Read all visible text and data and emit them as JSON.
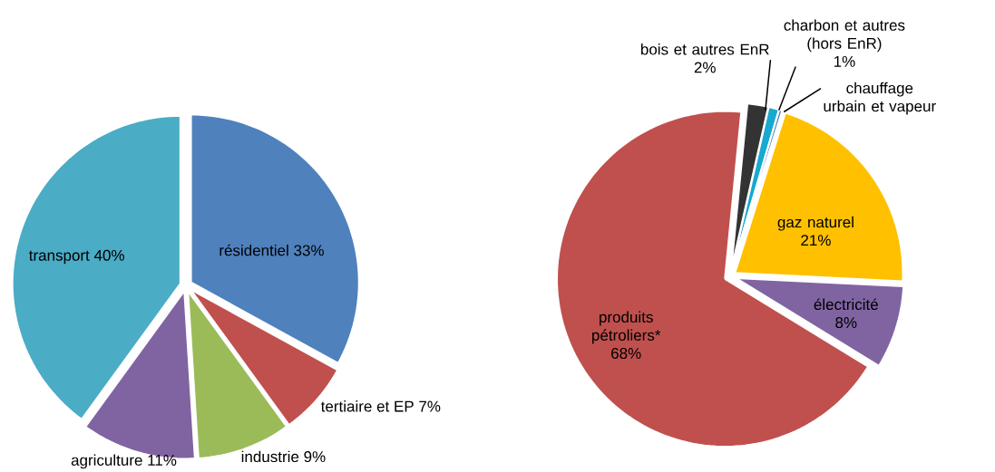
{
  "chart_data": [
    {
      "type": "pie",
      "categories": [
        "résidentiel",
        "tertiaire et EP",
        "industrie",
        "agriculture",
        "transport"
      ],
      "values": [
        33,
        7,
        9,
        11,
        40
      ],
      "value_labels": [
        "33%",
        "7%",
        "9%",
        "11%",
        "40%"
      ],
      "colors": [
        "#4f81bd",
        "#c0504d",
        "#9bbb59",
        "#8064a2",
        "#4bacc6"
      ]
    },
    {
      "type": "pie",
      "categories": [
        "bois et autres EnR",
        "charbon et autres (hors EnR)",
        "chauffage urbain et vapeur",
        "gaz naturel",
        "électricité",
        "produits pétroliers*"
      ],
      "values": [
        2,
        1,
        0.3,
        21,
        8,
        68
      ],
      "value_labels": [
        "2%",
        "1%",
        null,
        "21%",
        "8%",
        "68%"
      ],
      "colors": [
        "#333333",
        "#17a9cf",
        "#4f81bd",
        "#ffc000",
        "#8064a2",
        "#c0504d"
      ]
    }
  ]
}
